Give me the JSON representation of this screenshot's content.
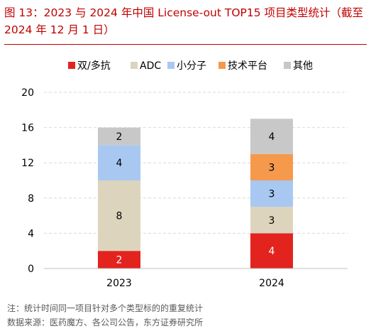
{
  "title": "图 13：2023 与 2024 年中国 License-out TOP15 项目类型统计（截至 2024 年 12 月 1 日）",
  "note": "注：统计时间同一项目针对多个类型标的的重复统计",
  "source": "数据来源：医药魔方、各公司公告，东方证券研究所",
  "colors": {
    "bispecific": "#e3231e",
    "adc": "#ddd4bd",
    "small_molecule": "#a9c8f1",
    "platform": "#f5994c",
    "other": "#c8c8c8",
    "grid": "#d9d9d9",
    "axis_text": "#000000"
  },
  "chart_data": {
    "type": "bar",
    "stacked": true,
    "title": "",
    "xlabel": "",
    "ylabel": "",
    "ylim": [
      0,
      20
    ],
    "yticks": [
      0,
      4,
      8,
      12,
      16,
      20
    ],
    "grid": "horizontal dashed",
    "legend_position": "top",
    "categories": [
      "2023",
      "2024"
    ],
    "series": [
      {
        "name": "双/多抗",
        "key": "bispecific",
        "values": [
          2,
          4
        ]
      },
      {
        "name": "ADC",
        "key": "adc",
        "values": [
          8,
          3
        ]
      },
      {
        "name": "小分子",
        "key": "small_molecule",
        "values": [
          4,
          3
        ]
      },
      {
        "name": "技术平台",
        "key": "platform",
        "values": [
          0,
          3
        ]
      },
      {
        "name": "其他",
        "key": "other",
        "values": [
          2,
          4
        ]
      }
    ]
  }
}
